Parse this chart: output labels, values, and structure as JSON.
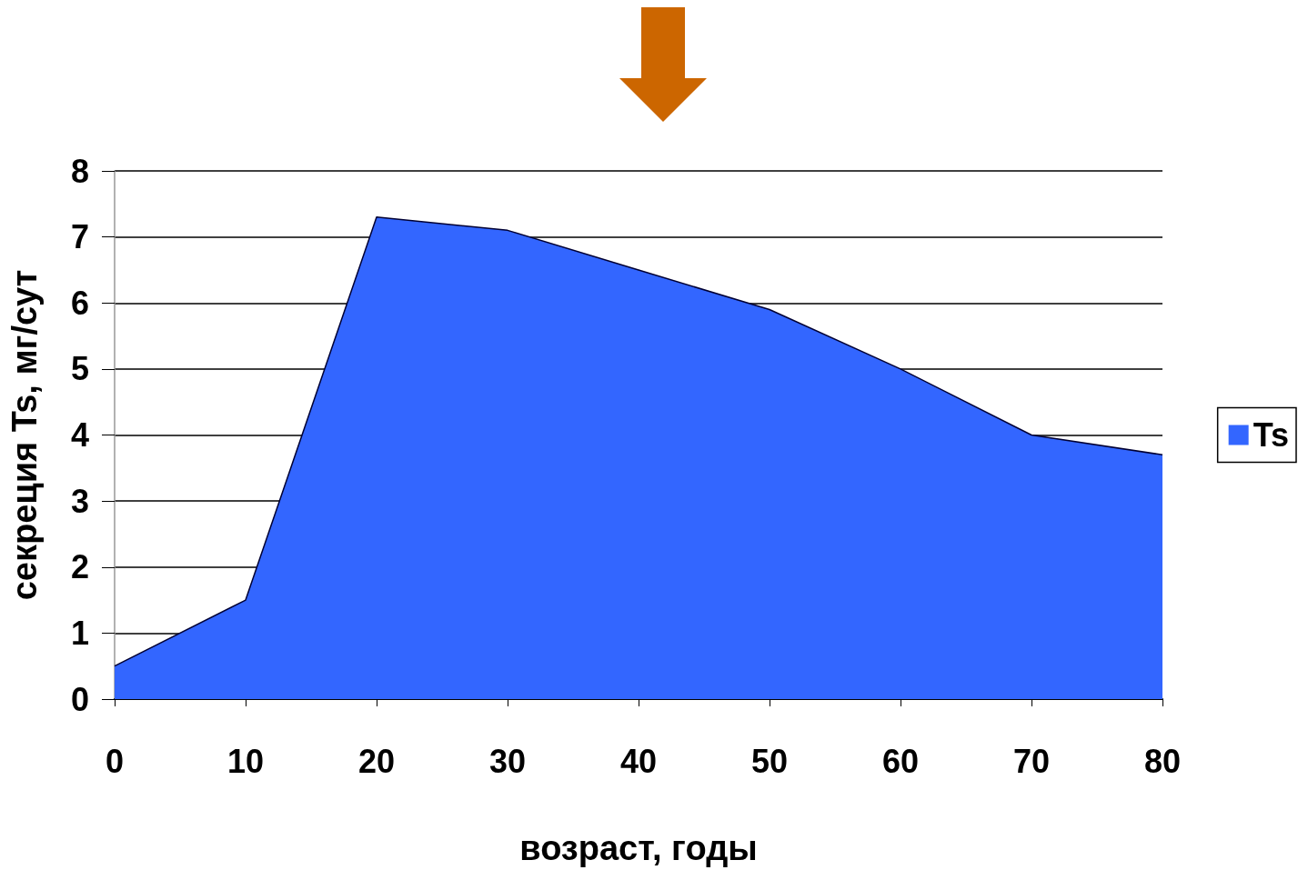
{
  "chart_data": {
    "type": "area",
    "xlabel": "возраст, годы",
    "ylabel": "секреция Ts, мг/сут",
    "x": [
      0,
      10,
      20,
      30,
      40,
      50,
      60,
      70,
      80
    ],
    "series": [
      {
        "name": "Ts",
        "color": "#3366ff",
        "values": [
          0.5,
          1.5,
          7.3,
          7.1,
          6.5,
          5.9,
          5.0,
          4.0,
          3.7
        ]
      }
    ],
    "xlim": [
      0,
      80
    ],
    "xticks": [
      0,
      10,
      20,
      30,
      40,
      50,
      60,
      70,
      80
    ],
    "ylim": [
      0,
      8
    ],
    "yticks": [
      0,
      1,
      2,
      3,
      4,
      5,
      6,
      7,
      8
    ],
    "grid": "y",
    "legend": "right",
    "marker": "none"
  }
}
